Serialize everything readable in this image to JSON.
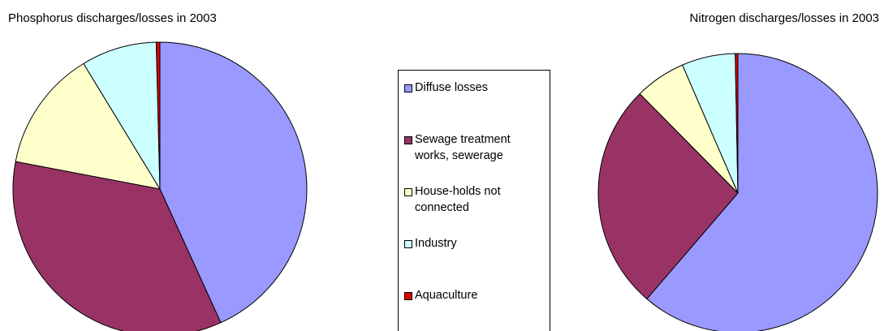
{
  "chart_data": [
    {
      "type": "pie",
      "title": "Phosphorus discharges/losses in 2003",
      "categories": [
        "Diffuse losses",
        "Sewage treatment works, sewerage",
        "House-holds not connected",
        "Industry",
        "Aquaculture"
      ],
      "values": [
        43.2,
        34.8,
        13.3,
        8.3,
        0.4
      ],
      "colors": [
        "#9999ff",
        "#993366",
        "#ffffcc",
        "#ccffff",
        "#e00000"
      ],
      "legend": "right"
    },
    {
      "type": "pie",
      "title": "Nitrogen discharges/losses in 2003",
      "categories": [
        "Diffuse losses",
        "Sewage treatment works, sewerage",
        "House-holds not connected",
        "Industry",
        "Aquaculture"
      ],
      "values": [
        61.3,
        26.3,
        5.9,
        6.2,
        0.3
      ],
      "colors": [
        "#9999ff",
        "#993366",
        "#ffffcc",
        "#ccffff",
        "#e00000"
      ]
    }
  ]
}
